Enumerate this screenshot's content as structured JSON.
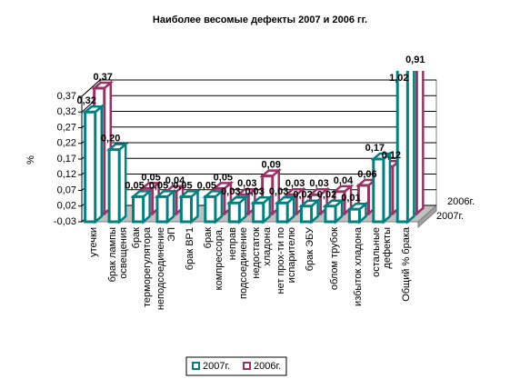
{
  "chart_data": {
    "type": "bar3d",
    "title": "Наиболее весомые дефекты 2007 и 2006 гг.",
    "y_label": "%",
    "categories": [
      "утечки",
      "брак лампы\nосвещения",
      "брак\nтерморегулятора",
      "неподсоединение\nЭП",
      "брак ВР1",
      "брак\nкомпрессора,",
      "неправ\nподсоединение",
      "недостаток\nхладона",
      "нет прох-ти по\nиспарителю",
      "брак ЭБУ",
      "облом трубок",
      "избыток хладона",
      "остальные\nдефекты",
      "Общий % брака"
    ],
    "series": [
      {
        "name": "2007г.",
        "color": "#008080",
        "values": [
          0.32,
          0.2,
          0.05,
          0.05,
          0.05,
          0.05,
          0.03,
          0.03,
          0.03,
          0.02,
          0.02,
          0.01,
          0.17,
          1.02
        ],
        "value_labels": [
          "0,32",
          "0,20",
          "0,05",
          "0,05",
          "0,05",
          "0,05",
          "0,03",
          "0,03",
          "0,03",
          "0,02",
          "0,02",
          "0,01",
          "0,17",
          "1,02"
        ]
      },
      {
        "name": "2006г.",
        "color": "#993366",
        "values": [
          0.37,
          null,
          0.05,
          0.04,
          null,
          0.05,
          0.03,
          0.09,
          0.03,
          0.03,
          0.04,
          0.06,
          0.12,
          0.91
        ],
        "value_labels": [
          "0,37",
          null,
          "0,05",
          "0,04",
          null,
          "0,05",
          "0,03",
          "0,09",
          "0,03",
          "0,03",
          "0,04",
          "0,06",
          "0,12",
          "0,91"
        ]
      }
    ],
    "ylim": [
      -0.03,
      0.37
    ],
    "yticks": [
      {
        "value": -0.03,
        "label": "-0,03"
      },
      {
        "value": 0.02,
        "label": "0,02"
      },
      {
        "value": 0.07,
        "label": "0,07"
      },
      {
        "value": 0.12,
        "label": "0,12"
      },
      {
        "value": 0.17,
        "label": "0,17"
      },
      {
        "value": 0.22,
        "label": "0,22"
      },
      {
        "value": 0.27,
        "label": "0,27"
      },
      {
        "value": 0.32,
        "label": "0,32"
      },
      {
        "value": 0.37,
        "label": "0,37"
      }
    ],
    "grid": true,
    "legend": "bottom"
  }
}
